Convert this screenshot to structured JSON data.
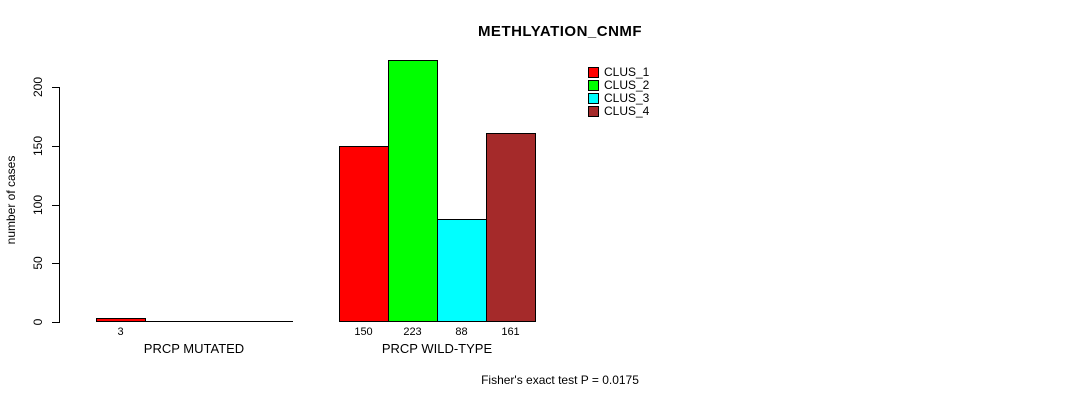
{
  "chart_data": {
    "type": "bar",
    "title": "METHLYATION_CNMF",
    "ylabel": "number of cases",
    "xlabel": "",
    "ylim": [
      0,
      200
    ],
    "yticks": [
      0,
      50,
      100,
      150,
      200
    ],
    "grid": false,
    "legend_position": "top-right-inside",
    "groups": [
      "PRCP MUTATED",
      "PRCP WILD-TYPE"
    ],
    "series": [
      {
        "name": "CLUS_1",
        "color": "#ff0000",
        "values": [
          3,
          150
        ]
      },
      {
        "name": "CLUS_2",
        "color": "#00ff00",
        "values": [
          0,
          223
        ]
      },
      {
        "name": "CLUS_3",
        "color": "#00ffff",
        "values": [
          0,
          88
        ]
      },
      {
        "name": "CLUS_4",
        "color": "#a52a2a",
        "values": [
          0,
          161
        ]
      }
    ],
    "bar_value_labels": [
      [
        "3",
        "",
        "",
        ""
      ],
      [
        "150",
        "223",
        "88",
        "161"
      ]
    ],
    "annotation": "Fisher's exact test P = 0.0175"
  }
}
